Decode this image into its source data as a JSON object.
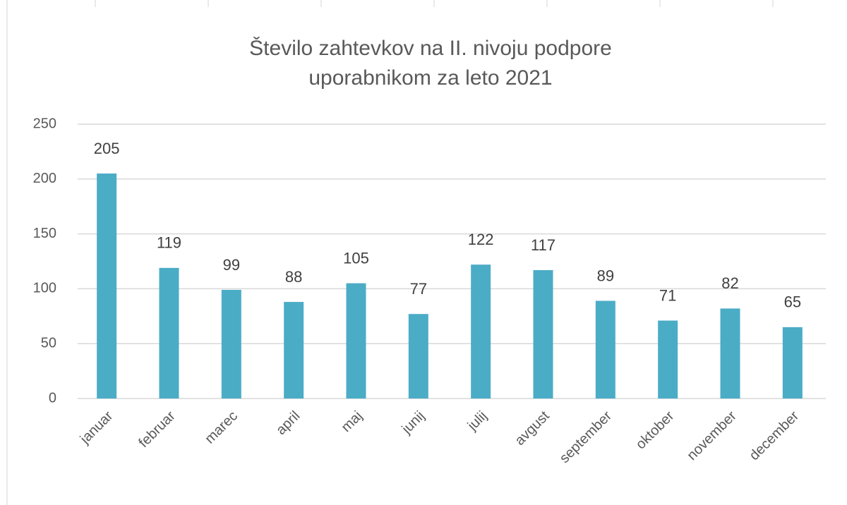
{
  "chart_data": {
    "type": "bar",
    "title": [
      "Število zahtevkov na II. nivoju podpore",
      "uporabnikom za leto 2021"
    ],
    "categories": [
      "januar",
      "februar",
      "marec",
      "april",
      "maj",
      "junij",
      "julij",
      "avgust",
      "september",
      "oktober",
      "november",
      "december"
    ],
    "values": [
      205,
      119,
      99,
      88,
      105,
      77,
      122,
      117,
      89,
      71,
      82,
      65
    ],
    "color": "#4bacc6",
    "ylim": [
      0,
      250
    ],
    "yticks": [
      0,
      50,
      100,
      150,
      200,
      250
    ],
    "grid": true
  }
}
